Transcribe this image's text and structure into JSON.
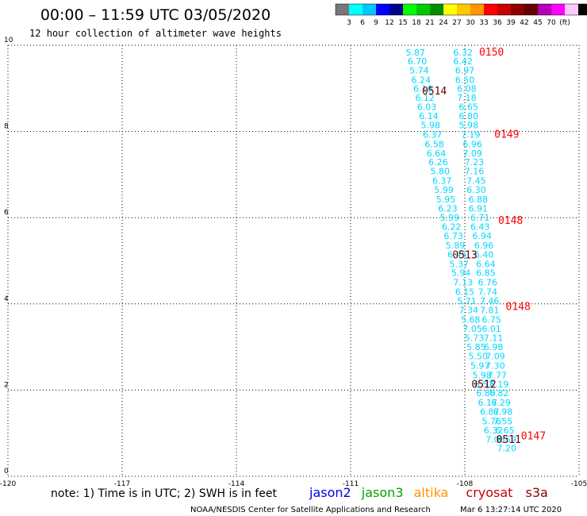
{
  "title": "00:00 – 11:59 UTC 03/05/2020",
  "subtitle": "12 hour collection of altimeter wave heights",
  "colorbar": {
    "colors": [
      "#777777",
      "#00ffff",
      "#00c8ff",
      "#0000ff",
      "#00008c",
      "#00ff00",
      "#00c800",
      "#008c00",
      "#ffff00",
      "#ffc800",
      "#ff9600",
      "#ff0000",
      "#c80000",
      "#8c0000",
      "#640000",
      "#b400b4",
      "#ff00ff",
      "#ffc8ff",
      "#000000"
    ],
    "labels": [
      "3",
      "6",
      "9",
      "12",
      "15",
      "18",
      "21",
      "24",
      "27",
      "30",
      "33",
      "36",
      "39",
      "42",
      "45",
      "70",
      "(ft)"
    ]
  },
  "note": "note: 1) Time is in UTC; 2) SWH is in feet",
  "legend": [
    {
      "label": "jason2",
      "color": "#0000e6"
    },
    {
      "label": "jason3",
      "color": "#00a000"
    },
    {
      "label": "altika",
      "color": "#ff9600"
    },
    {
      "label": "cryosat",
      "color": "#c80000"
    },
    {
      "label": "s3a",
      "color": "#8c0000"
    }
  ],
  "footer_left": "NOAA/NESDIS Center for Satellite Applications and Research",
  "footer_right": "Mar  6 13:27:14 UTC 2020",
  "chart_data": {
    "type": "scatter",
    "xlim": [
      -120,
      -105
    ],
    "ylim": [
      0,
      10
    ],
    "x_ticks": [
      "-120",
      "-117",
      "-114",
      "-111",
      "-108",
      "-105"
    ],
    "y_ticks": [
      "0",
      "2",
      "4",
      "6",
      "8",
      "10"
    ],
    "grid": true,
    "colors": {
      "cyan": "#00d8ff",
      "red": "#ff0000",
      "dark": "#6e0000"
    },
    "series": [
      {
        "color": "cyan",
        "points": [
          {
            "x": -109.3,
            "y": 9.83,
            "v": "5.87"
          },
          {
            "x": -109.25,
            "y": 9.63,
            "v": "6.70"
          },
          {
            "x": -109.2,
            "y": 9.42,
            "v": "5.74"
          },
          {
            "x": -109.15,
            "y": 9.2,
            "v": "6.24"
          },
          {
            "x": -109.1,
            "y": 9.0,
            "v": "6.16"
          },
          {
            "x": -109.05,
            "y": 8.78,
            "v": "6.12"
          },
          {
            "x": -109.0,
            "y": 8.57,
            "v": "6.03"
          },
          {
            "x": -108.95,
            "y": 8.36,
            "v": "6.14"
          },
          {
            "x": -108.9,
            "y": 8.15,
            "v": "5.98"
          },
          {
            "x": -108.85,
            "y": 7.93,
            "v": "6.37"
          },
          {
            "x": -108.8,
            "y": 7.71,
            "v": "6.58"
          },
          {
            "x": -108.75,
            "y": 7.5,
            "v": "6.64"
          },
          {
            "x": -108.7,
            "y": 7.29,
            "v": "6.26"
          },
          {
            "x": -108.65,
            "y": 7.08,
            "v": "5.80"
          },
          {
            "x": -108.6,
            "y": 6.86,
            "v": "6.37"
          },
          {
            "x": -108.55,
            "y": 6.65,
            "v": "5.99"
          },
          {
            "x": -108.5,
            "y": 6.43,
            "v": "5.95"
          },
          {
            "x": -108.45,
            "y": 6.22,
            "v": "6.23"
          },
          {
            "x": -108.4,
            "y": 6.0,
            "v": "5.99"
          },
          {
            "x": -108.35,
            "y": 5.79,
            "v": "6.22"
          },
          {
            "x": -108.3,
            "y": 5.58,
            "v": "6.73"
          },
          {
            "x": -108.25,
            "y": 5.36,
            "v": "5.89"
          },
          {
            "x": -108.2,
            "y": 5.15,
            "v": "6.45"
          },
          {
            "x": -108.15,
            "y": 4.93,
            "v": "5.37"
          },
          {
            "x": -108.1,
            "y": 4.72,
            "v": "5.94"
          },
          {
            "x": -108.05,
            "y": 4.5,
            "v": "7.13"
          },
          {
            "x": -108.0,
            "y": 4.28,
            "v": "6.15"
          },
          {
            "x": -107.95,
            "y": 4.07,
            "v": "5.71"
          },
          {
            "x": -107.9,
            "y": 3.86,
            "v": "7.34"
          },
          {
            "x": -107.85,
            "y": 3.64,
            "v": "5.68"
          },
          {
            "x": -107.8,
            "y": 3.43,
            "v": "7.05"
          },
          {
            "x": -107.75,
            "y": 3.21,
            "v": "5.73"
          },
          {
            "x": -107.7,
            "y": 3.0,
            "v": "5.85"
          },
          {
            "x": -107.65,
            "y": 2.79,
            "v": "5.50"
          },
          {
            "x": -107.6,
            "y": 2.57,
            "v": "5.97"
          },
          {
            "x": -107.55,
            "y": 2.35,
            "v": "5.98"
          },
          {
            "x": -107.5,
            "y": 2.14,
            "v": "6.57"
          },
          {
            "x": -107.45,
            "y": 1.93,
            "v": "6.80"
          },
          {
            "x": -107.4,
            "y": 1.71,
            "v": "6.17"
          },
          {
            "x": -107.35,
            "y": 1.5,
            "v": "6.87"
          },
          {
            "x": -107.3,
            "y": 1.28,
            "v": "5.76"
          },
          {
            "x": -107.25,
            "y": 1.07,
            "v": "6.32"
          },
          {
            "x": -107.2,
            "y": 0.86,
            "v": "7.06"
          },
          {
            "x": -108.05,
            "y": 9.83,
            "v": "6.32"
          },
          {
            "x": -108.05,
            "y": 9.63,
            "v": "6.42"
          },
          {
            "x": -108.0,
            "y": 9.42,
            "v": "6.97"
          },
          {
            "x": -108.0,
            "y": 9.2,
            "v": "6.50"
          },
          {
            "x": -107.95,
            "y": 9.0,
            "v": "6.08"
          },
          {
            "x": -107.95,
            "y": 8.78,
            "v": "7.18"
          },
          {
            "x": -107.9,
            "y": 8.57,
            "v": "6.65"
          },
          {
            "x": -107.9,
            "y": 8.36,
            "v": "6.80"
          },
          {
            "x": -107.9,
            "y": 8.15,
            "v": "5.98"
          },
          {
            "x": -107.85,
            "y": 7.93,
            "v": "7.19"
          },
          {
            "x": -107.8,
            "y": 7.71,
            "v": "6.96"
          },
          {
            "x": -107.8,
            "y": 7.5,
            "v": "7.09"
          },
          {
            "x": -107.75,
            "y": 7.29,
            "v": "7.23"
          },
          {
            "x": -107.75,
            "y": 7.08,
            "v": "7.16"
          },
          {
            "x": -107.7,
            "y": 6.86,
            "v": "7.45"
          },
          {
            "x": -107.7,
            "y": 6.65,
            "v": "6.30"
          },
          {
            "x": -107.65,
            "y": 6.43,
            "v": "6.88"
          },
          {
            "x": -107.65,
            "y": 6.22,
            "v": "6.91"
          },
          {
            "x": -107.6,
            "y": 6.0,
            "v": "6.71"
          },
          {
            "x": -107.6,
            "y": 5.79,
            "v": "6.43"
          },
          {
            "x": -107.55,
            "y": 5.58,
            "v": "6.94"
          },
          {
            "x": -107.5,
            "y": 5.36,
            "v": "6.96"
          },
          {
            "x": -107.5,
            "y": 5.15,
            "v": "6.40"
          },
          {
            "x": -107.45,
            "y": 4.93,
            "v": "6.64"
          },
          {
            "x": -107.45,
            "y": 4.72,
            "v": "6.85"
          },
          {
            "x": -107.4,
            "y": 4.5,
            "v": "6.76"
          },
          {
            "x": -107.4,
            "y": 4.28,
            "v": "7.74"
          },
          {
            "x": -107.35,
            "y": 4.07,
            "v": "7.46"
          },
          {
            "x": -107.35,
            "y": 3.86,
            "v": "7.81"
          },
          {
            "x": -107.3,
            "y": 3.64,
            "v": "6.75"
          },
          {
            "x": -107.3,
            "y": 3.43,
            "v": "6.01"
          },
          {
            "x": -107.25,
            "y": 3.21,
            "v": "7.11"
          },
          {
            "x": -107.25,
            "y": 3.0,
            "v": "6.98"
          },
          {
            "x": -107.2,
            "y": 2.79,
            "v": "7.09"
          },
          {
            "x": -107.2,
            "y": 2.57,
            "v": "7.30"
          },
          {
            "x": -107.15,
            "y": 2.35,
            "v": "7.77"
          },
          {
            "x": -107.1,
            "y": 2.14,
            "v": "6.19"
          },
          {
            "x": -107.1,
            "y": 1.93,
            "v": "6.82"
          },
          {
            "x": -107.05,
            "y": 1.71,
            "v": "6.29"
          },
          {
            "x": -107.0,
            "y": 1.5,
            "v": "6.98"
          },
          {
            "x": -107.0,
            "y": 1.28,
            "v": "7.55"
          },
          {
            "x": -106.95,
            "y": 1.07,
            "v": "6.65"
          },
          {
            "x": -106.9,
            "y": 0.86,
            "v": "6.59"
          },
          {
            "x": -106.9,
            "y": 0.65,
            "v": "7.20"
          }
        ]
      },
      {
        "color": "red",
        "points": [
          {
            "x": -107.3,
            "y": 9.83,
            "v": "0150"
          },
          {
            "x": -106.9,
            "y": 7.93,
            "v": "0149"
          },
          {
            "x": -106.8,
            "y": 5.93,
            "v": "0148"
          },
          {
            "x": -106.6,
            "y": 3.93,
            "v": "0148"
          },
          {
            "x": -106.2,
            "y": 0.93,
            "v": "0147"
          }
        ]
      },
      {
        "color": "dark",
        "points": [
          {
            "x": -108.8,
            "y": 8.93,
            "v": "0514"
          },
          {
            "x": -108.0,
            "y": 5.13,
            "v": "0513"
          },
          {
            "x": -107.5,
            "y": 2.13,
            "v": "0512"
          },
          {
            "x": -106.85,
            "y": 0.85,
            "v": "0511"
          }
        ]
      }
    ]
  }
}
